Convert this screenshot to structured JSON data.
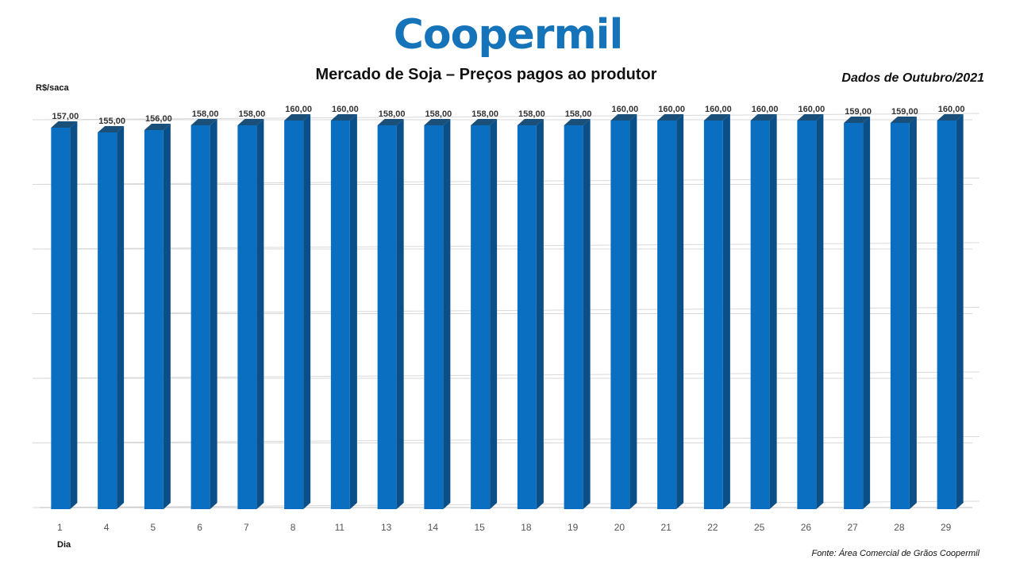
{
  "logo": {
    "text": "Coopermil"
  },
  "header": {
    "title": "Mercado de Soja – Preços pagos ao produtor",
    "period": "Dados de Outubro/2021"
  },
  "footer": {
    "source": "Fonte: Área Comercial  de Grãos Coopermil"
  },
  "colors": {
    "bar_front": "#0b6fc1",
    "bar_side": "#0a4f88",
    "bar_top": "#1a4f7a",
    "brand": "#1574b9",
    "grid": "#d9d9d9"
  },
  "chart_data": {
    "type": "bar",
    "title": "Mercado de Soja – Preços pagos ao produtor",
    "xlabel": "Dia",
    "ylabel": "R$/saca",
    "categories": [
      "1",
      "4",
      "5",
      "6",
      "7",
      "8",
      "11",
      "13",
      "14",
      "15",
      "18",
      "19",
      "20",
      "21",
      "22",
      "25",
      "26",
      "27",
      "28",
      "29"
    ],
    "values": [
      157,
      155,
      156,
      158,
      158,
      160,
      160,
      158,
      158,
      158,
      158,
      158,
      160,
      160,
      160,
      160,
      160,
      159,
      159,
      160
    ],
    "value_labels": [
      "157,00",
      "155,00",
      "156,00",
      "158,00",
      "158,00",
      "160,00",
      "160,00",
      "158,00",
      "158,00",
      "158,00",
      "158,00",
      "158,00",
      "160,00",
      "160,00",
      "160,00",
      "160,00",
      "160,00",
      "159,00",
      "159,00",
      "160,00"
    ],
    "grid": true,
    "legend": false
  }
}
